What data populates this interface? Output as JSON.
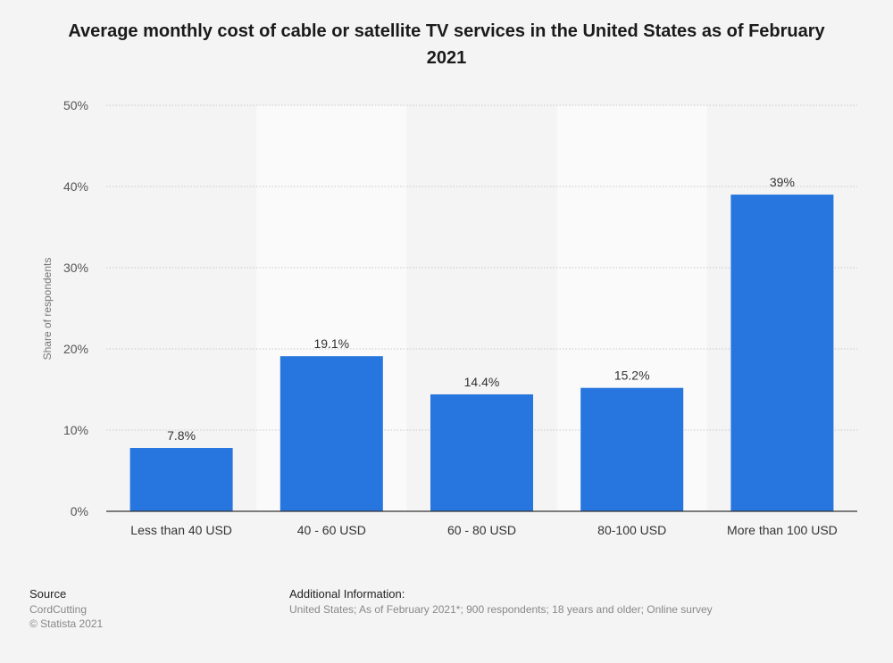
{
  "chart_data": {
    "type": "bar",
    "title": "Average monthly cost of cable or satellite TV services in the United States as of February 2021",
    "categories": [
      "Less than 40 USD",
      "40 - 60 USD",
      "60 - 80 USD",
      "80-100 USD",
      "More than 100 USD"
    ],
    "values": [
      7.8,
      19.1,
      14.4,
      15.2,
      39
    ],
    "data_labels": [
      "7.8%",
      "19.1%",
      "14.4%",
      "15.2%",
      "39%"
    ],
    "ylabel": "Share of respondents",
    "xlabel": "",
    "ylim": [
      0,
      50
    ],
    "yticks": [
      "0%",
      "10%",
      "20%",
      "30%",
      "40%",
      "50%"
    ],
    "bar_color": "#2775de",
    "grid": true
  },
  "footer": {
    "source_heading": "Source",
    "source_name": "CordCutting",
    "copyright": "© Statista 2021",
    "additional_heading": "Additional Information:",
    "additional_text": "United States; As of February 2021*; 900 respondents; 18 years and older; Online survey"
  }
}
